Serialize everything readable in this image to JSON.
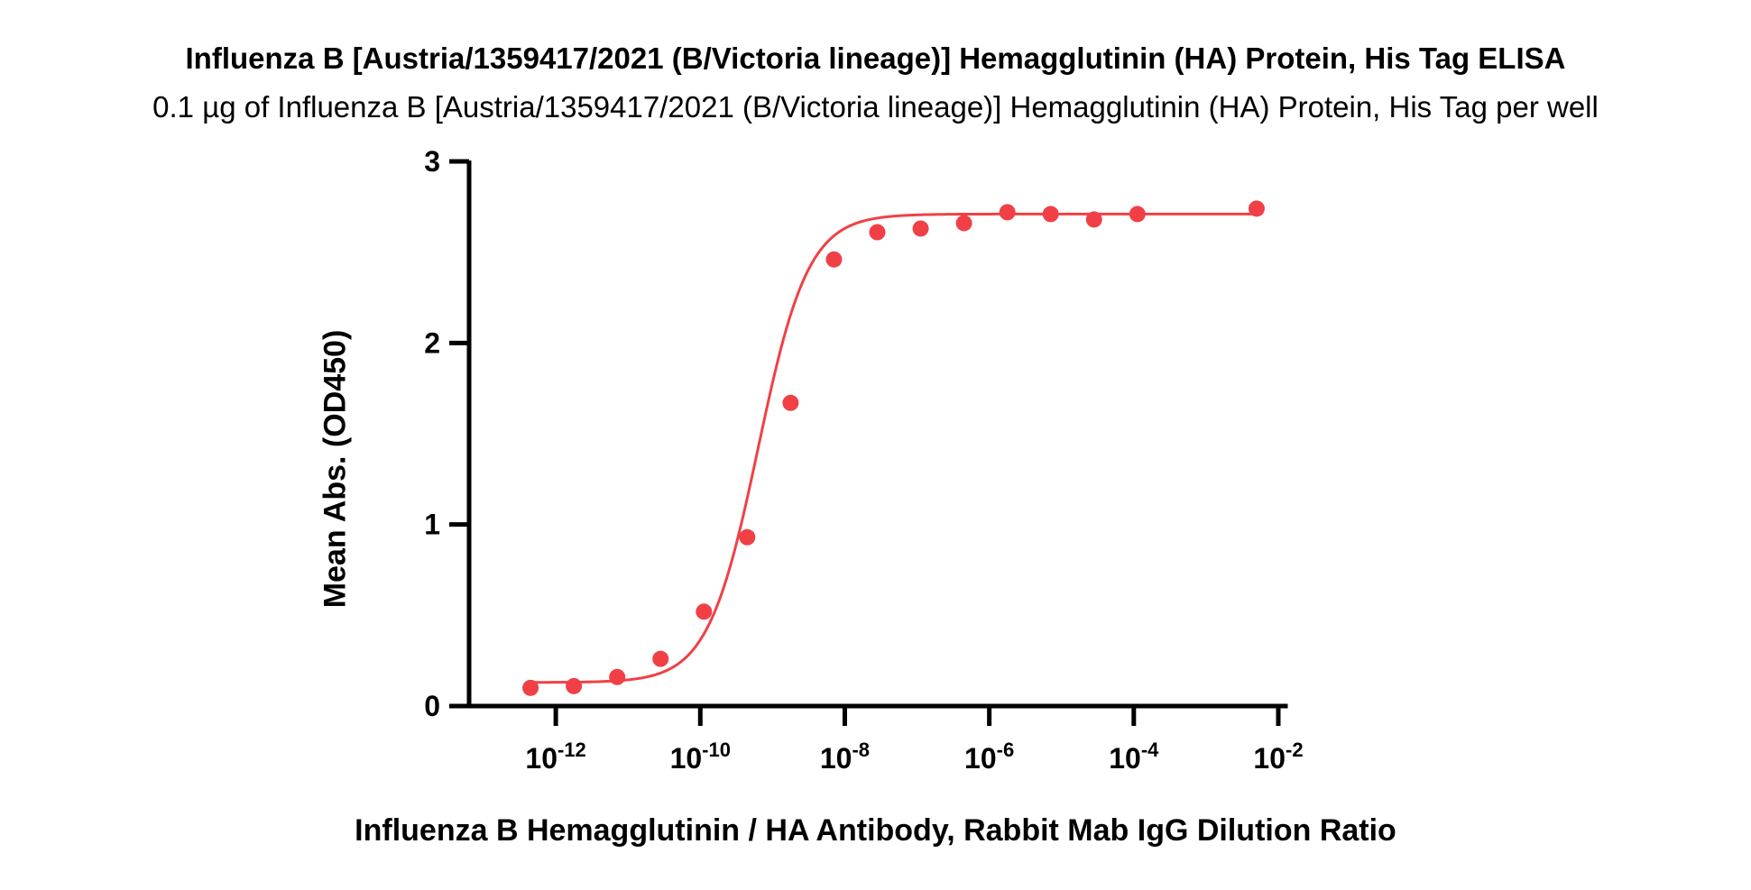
{
  "chart_data": {
    "type": "scatter",
    "title": "Influenza B [Austria/1359417/2021 (B/Victoria lineage)] Hemagglutinin (HA) Protein, His Tag ELISA",
    "subtitle": "0.1 µg of Influenza B [Austria/1359417/2021 (B/Victoria lineage)] Hemagglutinin (HA) Protein, His Tag per well",
    "xlabel": "Influenza B Hemagglutinin / HA Antibody, Rabbit Mab IgG Dilution Ratio",
    "ylabel": "Mean Abs. (OD450)",
    "x_scale": "log",
    "xlim_log10": [
      -13.2,
      -1.9
    ],
    "ylim": [
      0,
      3
    ],
    "grid": false,
    "x_ticks": [
      {
        "base": "10",
        "exp": "-12",
        "value_log10": -12
      },
      {
        "base": "10",
        "exp": "-10",
        "value_log10": -10
      },
      {
        "base": "10",
        "exp": "-8",
        "value_log10": -8
      },
      {
        "base": "10",
        "exp": "-6",
        "value_log10": -6
      },
      {
        "base": "10",
        "exp": "-4",
        "value_log10": -4
      },
      {
        "base": "10",
        "exp": "-2",
        "value_log10": -2
      }
    ],
    "y_ticks": [
      {
        "label": "0",
        "value": 0
      },
      {
        "label": "1",
        "value": 1
      },
      {
        "label": "2",
        "value": 2
      },
      {
        "label": "3",
        "value": 3
      }
    ],
    "series": [
      {
        "color": "#f04046",
        "x_log10": [
          -12.35,
          -11.75,
          -11.15,
          -10.55,
          -9.95,
          -9.35,
          -8.75,
          -8.15,
          -7.55,
          -6.95,
          -6.35,
          -5.75,
          -5.15,
          -4.55,
          -3.95,
          -2.3
        ],
        "y": [
          0.1,
          0.11,
          0.16,
          0.26,
          0.52,
          0.93,
          1.67,
          2.46,
          2.61,
          2.63,
          2.66,
          2.72,
          2.71,
          2.68,
          2.71,
          2.74
        ]
      }
    ],
    "fit": {
      "model": "4PL",
      "bottom": 0.13,
      "top": 2.71,
      "log_ec50": -9.2,
      "hill": 1.25,
      "x_range_log10": [
        -12.35,
        -2.3
      ],
      "color": "#f04046"
    }
  }
}
